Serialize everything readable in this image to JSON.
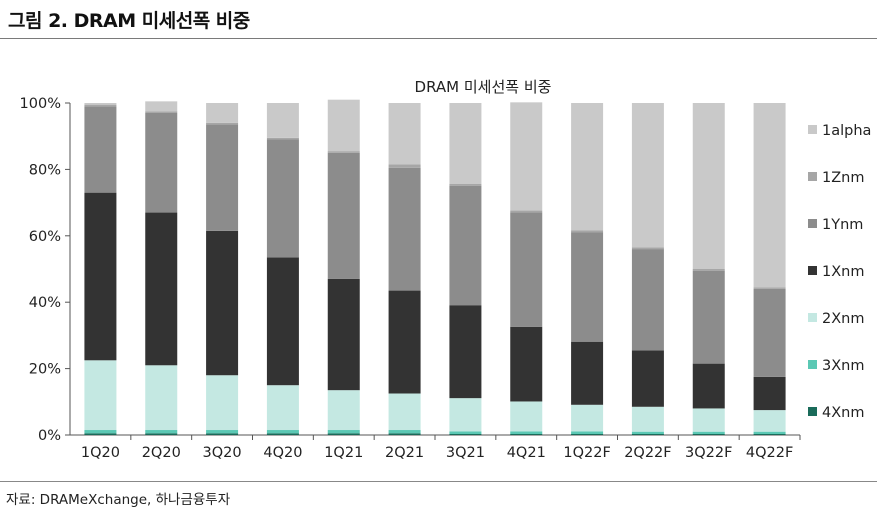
{
  "figure_title": "그림 2. DRAM 미세선폭 비중",
  "source": "자료: DRAMeXchange, 하나금융투자",
  "chart_data": {
    "type": "bar",
    "stacked": true,
    "title": "DRAM 미세선폭 비중",
    "categories": [
      "1Q20",
      "2Q20",
      "3Q20",
      "4Q20",
      "1Q21",
      "2Q21",
      "3Q21",
      "4Q21",
      "1Q22F",
      "2Q22F",
      "3Q22F",
      "4Q22F"
    ],
    "ylim": [
      0,
      100
    ],
    "yticks": [
      "0%",
      "20%",
      "40%",
      "60%",
      "80%",
      "100%"
    ],
    "legend_position": "right",
    "series": [
      {
        "name": "4Xnm",
        "color": "#1a6b5a",
        "values": [
          0.5,
          0.5,
          0.5,
          0.5,
          0.5,
          0.5,
          0.3,
          0.3,
          0.3,
          0.3,
          0.3,
          0.3
        ]
      },
      {
        "name": "3Xnm",
        "color": "#5bc8b4",
        "values": [
          1.0,
          1.0,
          1.0,
          1.0,
          1.0,
          1.0,
          0.8,
          0.8,
          0.8,
          0.7,
          0.7,
          0.7
        ]
      },
      {
        "name": "2Xnm",
        "color": "#c4e8e2",
        "values": [
          21.0,
          19.5,
          16.5,
          13.5,
          12.0,
          11.0,
          10.0,
          9.0,
          8.0,
          7.5,
          7.0,
          6.5
        ]
      },
      {
        "name": "1Xnm",
        "color": "#333333",
        "values": [
          50.5,
          46.0,
          43.5,
          38.5,
          33.5,
          31.0,
          28.0,
          22.5,
          19.0,
          17.0,
          13.5,
          10.0
        ]
      },
      {
        "name": "1Ynm",
        "color": "#8c8c8c",
        "values": [
          26.0,
          30.0,
          32.0,
          35.5,
          38.0,
          37.0,
          36.0,
          34.5,
          33.0,
          30.5,
          28.0,
          26.5
        ]
      },
      {
        "name": "1Znm",
        "color": "#a6a6a6",
        "values": [
          0.5,
          0.5,
          0.5,
          0.5,
          0.5,
          1.0,
          0.5,
          0.5,
          0.5,
          0.5,
          0.5,
          0.5
        ]
      },
      {
        "name": "1alpha",
        "color": "#c9c9c9",
        "values": [
          0.5,
          3.0,
          6.0,
          10.5,
          15.5,
          18.5,
          24.4,
          32.6,
          38.4,
          43.5,
          50.0,
          55.5
        ]
      }
    ]
  }
}
